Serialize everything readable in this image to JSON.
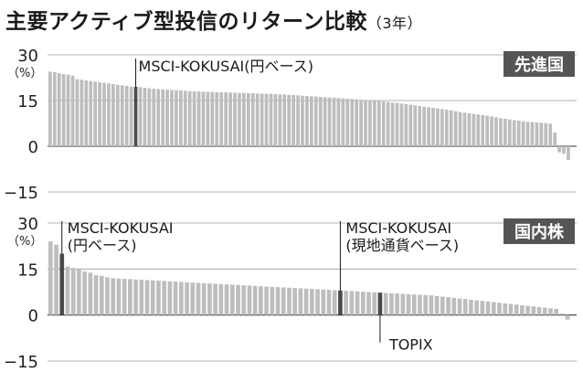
{
  "title": "主要アクティブ型投信のリターン比較",
  "subtitle": "（3年）",
  "chart_data": [
    {
      "type": "bar",
      "name": "先進国",
      "ylim": [
        -15,
        30
      ],
      "ytick_values": [
        30,
        15,
        0,
        -15
      ],
      "ytick_labels": [
        "30",
        "15",
        "0",
        "−15"
      ],
      "ylabel": "（%）",
      "grid": true,
      "colors": {
        "bar": "#bdbdbd",
        "highlight": "#4a4a4a",
        "badge_bg": "#555555",
        "badge_text": "#ffffff"
      },
      "values": [
        24.5,
        24.3,
        24.0,
        23.7,
        23.5,
        23.2,
        22.0,
        21.8,
        21.6,
        21.4,
        21.2,
        21.0,
        20.8,
        20.6,
        20.4,
        20.2,
        20.0,
        19.8,
        19.6,
        19.5,
        19.4,
        19.2,
        19.0,
        18.9,
        18.8,
        18.7,
        18.6,
        18.5,
        18.4,
        18.3,
        18.2,
        18.1,
        18.0,
        18.0,
        17.9,
        17.9,
        17.8,
        17.8,
        17.7,
        17.7,
        17.6,
        17.6,
        17.5,
        17.5,
        17.4,
        17.4,
        17.3,
        17.3,
        17.2,
        17.2,
        17.1,
        17.0,
        17.0,
        16.9,
        16.8,
        16.7,
        16.6,
        16.5,
        16.4,
        16.3,
        16.2,
        16.1,
        16.0,
        15.9,
        15.8,
        15.7,
        15.6,
        15.5,
        15.4,
        15.3,
        15.2,
        15.1,
        15.0,
        14.9,
        14.7,
        14.5,
        14.3,
        14.2,
        14.0,
        13.8,
        13.6,
        13.4,
        13.2,
        13.0,
        12.8,
        12.6,
        12.4,
        12.2,
        12.0,
        11.8,
        11.5,
        11.2,
        11.0,
        10.8,
        10.6,
        10.4,
        10.2,
        10.0,
        9.8,
        9.5,
        9.2,
        9.0,
        8.8,
        8.6,
        8.4,
        8.2,
        8.0,
        7.9,
        7.8,
        7.7,
        7.6,
        7.4,
        4.5,
        -2.0,
        -2.5,
        -4.5
      ],
      "highlight": [
        {
          "index": 19,
          "label": "MSCI-KOKUSAI(円ベース)"
        }
      ]
    },
    {
      "type": "bar",
      "name": "国内株",
      "ylim": [
        -15,
        30
      ],
      "ytick_values": [
        30,
        15,
        0,
        -15
      ],
      "ytick_labels": [
        "30",
        "15",
        "0",
        "−15"
      ],
      "ylabel": "（%）",
      "grid": true,
      "colors": {
        "bar": "#bdbdbd",
        "highlight": "#4a4a4a",
        "badge_bg": "#555555",
        "badge_text": "#ffffff"
      },
      "values": [
        24.0,
        23.0,
        20.0,
        15.8,
        15.3,
        14.8,
        14.2,
        13.8,
        13.0,
        12.8,
        12.3,
        12.0,
        11.9,
        11.8,
        11.7,
        11.6,
        11.5,
        11.4,
        11.3,
        11.2,
        11.1,
        11.0,
        10.9,
        10.8,
        10.7,
        10.6,
        10.5,
        10.4,
        10.3,
        10.2,
        10.1,
        10.0,
        9.9,
        9.8,
        9.7,
        9.6,
        9.5,
        9.4,
        9.3,
        9.2,
        9.1,
        9.0,
        8.9,
        8.8,
        8.7,
        8.6,
        8.5,
        8.4,
        8.3,
        8.2,
        8.1,
        8.0,
        7.9,
        7.8,
        7.7,
        7.6,
        7.5,
        7.4,
        7.3,
        7.2,
        7.1,
        7.0,
        6.9,
        6.8,
        6.7,
        6.6,
        6.5,
        6.4,
        6.2,
        6.0,
        5.8,
        5.6,
        5.4,
        5.2,
        5.0,
        4.8,
        4.6,
        4.4,
        4.2,
        4.0,
        3.8,
        3.6,
        3.4,
        3.2,
        3.0,
        2.8,
        2.6,
        2.4,
        2.2,
        2.0,
        0.5,
        -1.5
      ],
      "highlight": [
        {
          "index": 2,
          "label": "MSCI-KOKUSAI\n(円ベース)",
          "label_pos": "above"
        },
        {
          "index": 51,
          "label": "MSCI-KOKUSAI\n(現地通貨ベース)",
          "label_pos": "above"
        },
        {
          "index": 58,
          "label": "TOPIX",
          "label_pos": "below"
        }
      ]
    }
  ]
}
